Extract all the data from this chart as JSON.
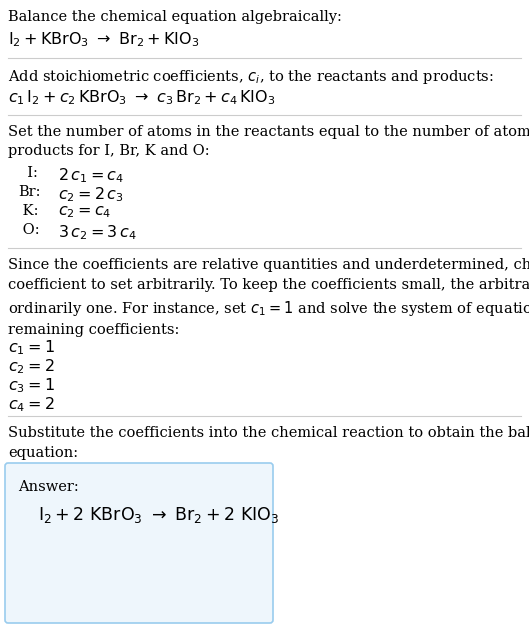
{
  "background_color": "#ffffff",
  "text_color": "#000000",
  "figsize": [
    5.29,
    6.27
  ],
  "dpi": 100,
  "sections": {
    "s1_header": "Balance the chemical equation algebraically:",
    "s1_eq": "$\\mathrm{I_2 + KBrO_3 \\ \\rightarrow \\ Br_2 + KIO_3}$",
    "s2_header": "Add stoichiometric coefficients, $c_i$, to the reactants and products:",
    "s2_eq": "$c_1 \\, \\mathrm{I_2} + c_2 \\, \\mathrm{KBrO_3} \\ \\rightarrow \\ c_3 \\, \\mathrm{Br_2} + c_4 \\, \\mathrm{KIO_3}$",
    "s3_header": "Set the number of atoms in the reactants equal to the number of atoms in the\nproducts for I, Br, K and O:",
    "s3_rows": [
      [
        "  I:",
        "$2 \\, c_1 = c_4$"
      ],
      [
        "Br:",
        "$c_2 = 2 \\, c_3$"
      ],
      [
        " K:",
        "$c_2 = c_4$"
      ],
      [
        " O:",
        "$3 \\, c_2 = 3 \\, c_4$"
      ]
    ],
    "s4_header": "Since the coefficients are relative quantities and underdetermined, choose a\ncoefficient to set arbitrarily. To keep the coefficients small, the arbitrary value is\nordinarily one. For instance, set $c_1 = 1$ and solve the system of equations for the\nremaining coefficients:",
    "s4_sols": [
      "$c_1 = 1$",
      "$c_2 = 2$",
      "$c_3 = 1$",
      "$c_4 = 2$"
    ],
    "s5_header": "Substitute the coefficients into the chemical reaction to obtain the balanced\nequation:",
    "answer_label": "Answer:",
    "answer_eq": "$\\mathrm{I_2 + 2 \\ KBrO_3 \\ \\rightarrow \\ Br_2 + 2 \\ KIO_3}$"
  },
  "hrule_color": "#cccccc",
  "box_edge_color": "#99ccee",
  "box_face_color": "#eef6fc"
}
